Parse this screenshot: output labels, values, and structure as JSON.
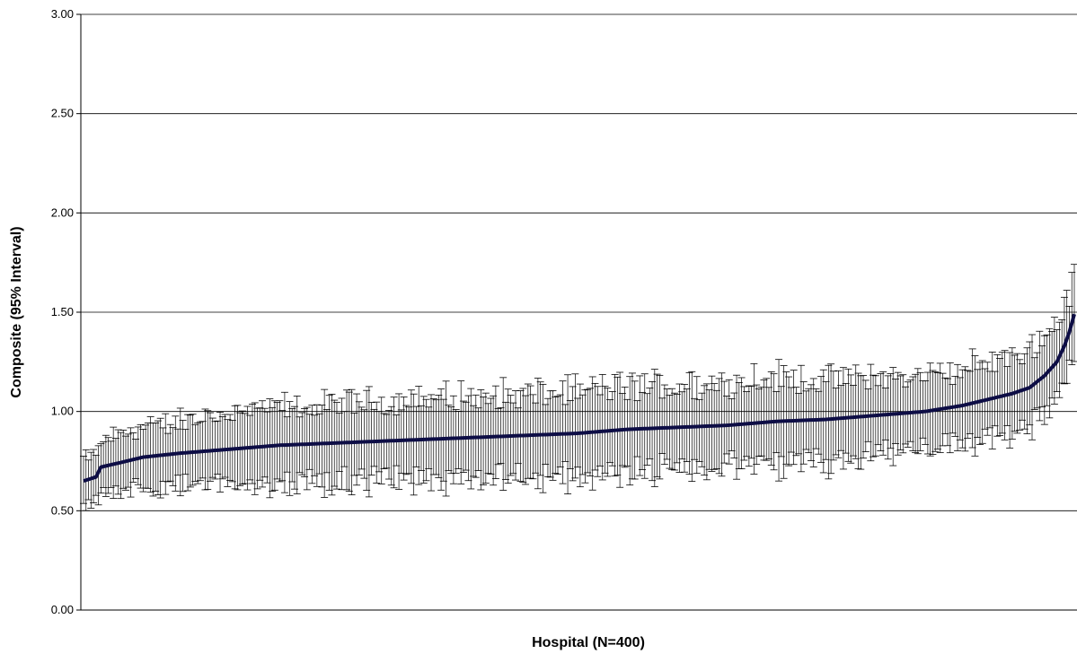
{
  "chart_data": {
    "type": "line",
    "title": "",
    "xlabel": "Hospital (N=400)",
    "ylabel": "Composite (95% Interval)",
    "ylim": [
      0,
      3
    ],
    "yticks": [
      "0.00",
      "0.50",
      "1.00",
      "1.50",
      "2.00",
      "2.50",
      "3.00"
    ],
    "grid": "horizontal",
    "legend": "none",
    "n_points": 400,
    "x": [
      1,
      400
    ],
    "series": [
      {
        "estimate_curve": [
          [
            1,
            0.65
          ],
          [
            6,
            0.67
          ],
          [
            8,
            0.72
          ],
          [
            15,
            0.74
          ],
          [
            25,
            0.77
          ],
          [
            40,
            0.79
          ],
          [
            60,
            0.81
          ],
          [
            80,
            0.83
          ],
          [
            100,
            0.84
          ],
          [
            120,
            0.85
          ],
          [
            140,
            0.86
          ],
          [
            160,
            0.87
          ],
          [
            180,
            0.88
          ],
          [
            200,
            0.89
          ],
          [
            220,
            0.91
          ],
          [
            240,
            0.92
          ],
          [
            260,
            0.93
          ],
          [
            280,
            0.95
          ],
          [
            300,
            0.96
          ],
          [
            320,
            0.98
          ],
          [
            340,
            1.0
          ],
          [
            355,
            1.03
          ],
          [
            365,
            1.06
          ],
          [
            375,
            1.09
          ],
          [
            382,
            1.12
          ],
          [
            388,
            1.18
          ],
          [
            393,
            1.25
          ],
          [
            396,
            1.33
          ],
          [
            398,
            1.4
          ],
          [
            400,
            1.49
          ]
        ],
        "half_width_curve": [
          [
            1,
            0.11
          ],
          [
            20,
            0.15
          ],
          [
            60,
            0.18
          ],
          [
            120,
            0.2
          ],
          [
            200,
            0.21
          ],
          [
            280,
            0.22
          ],
          [
            340,
            0.18
          ],
          [
            380,
            0.2
          ],
          [
            400,
            0.2
          ]
        ],
        "line_color": "#0d0d45",
        "errorbar_color": "#000000"
      }
    ]
  }
}
